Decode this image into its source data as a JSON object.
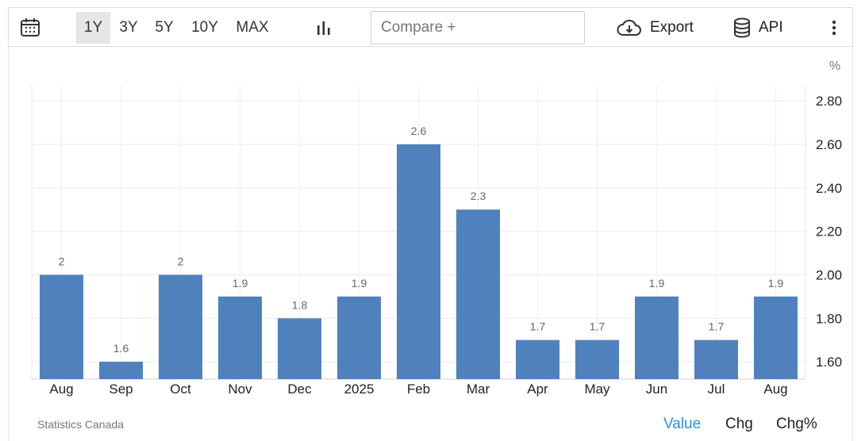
{
  "toolbar": {
    "ranges": [
      "1Y",
      "3Y",
      "5Y",
      "10Y",
      "MAX"
    ],
    "active_range": "1Y",
    "compare_placeholder": "Compare +",
    "export_label": "Export",
    "api_label": "API"
  },
  "chart_data": {
    "type": "bar",
    "categories": [
      "Aug",
      "Sep",
      "Oct",
      "Nov",
      "Dec",
      "2025",
      "Feb",
      "Mar",
      "Apr",
      "May",
      "Jun",
      "Jul",
      "Aug"
    ],
    "values": [
      2,
      1.6,
      2,
      1.9,
      1.8,
      1.9,
      2.6,
      2.3,
      1.7,
      1.7,
      1.9,
      1.7,
      1.9
    ],
    "data_labels": [
      "2",
      "1.6",
      "2",
      "1.9",
      "1.8",
      "1.9",
      "2.6",
      "2.3",
      "1.7",
      "1.7",
      "1.9",
      "1.7",
      "1.9"
    ],
    "y_ticks": [
      "1.60",
      "1.80",
      "2.00",
      "2.20",
      "2.40",
      "2.60",
      "2.80"
    ],
    "ylim": [
      1.52,
      2.87
    ],
    "y_unit": "%",
    "y_axis_position": "right",
    "grid": true,
    "bar_color": "#4f81bd"
  },
  "footer": {
    "source": "Statistics Canada",
    "tabs": [
      "Value",
      "Chg",
      "Chg%"
    ],
    "active_tab": "Value"
  }
}
